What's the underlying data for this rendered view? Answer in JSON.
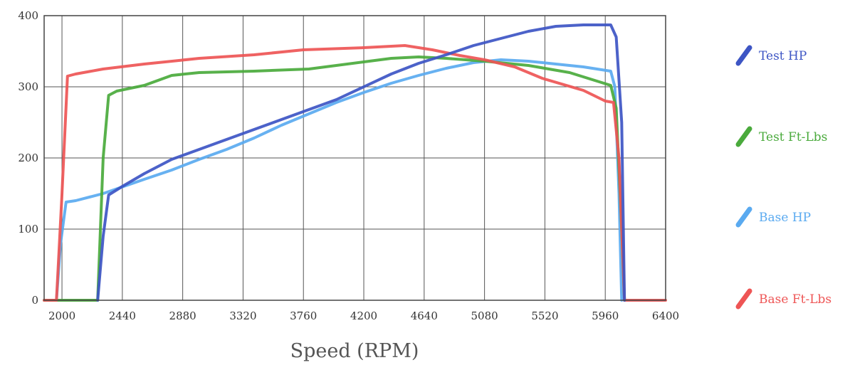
{
  "chart_data": {
    "type": "line",
    "title": "",
    "xlabel": "Speed (RPM)",
    "ylabel": "",
    "xlim": [
      1870,
      6400
    ],
    "ylim": [
      0,
      400
    ],
    "x_ticks": [
      "2000",
      "2440",
      "2880",
      "3320",
      "3760",
      "4200",
      "4640",
      "5080",
      "5520",
      "5960",
      "6400"
    ],
    "y_ticks": [
      "0",
      "100",
      "200",
      "300",
      "400"
    ],
    "grid": true,
    "legend_position": "right",
    "series": [
      {
        "name": "Test HP",
        "color": "#3d55c4",
        "points": [
          [
            2260,
            0
          ],
          [
            2300,
            90
          ],
          [
            2340,
            148
          ],
          [
            2440,
            160
          ],
          [
            2600,
            178
          ],
          [
            2800,
            198
          ],
          [
            3000,
            212
          ],
          [
            3200,
            226
          ],
          [
            3400,
            240
          ],
          [
            3600,
            254
          ],
          [
            3800,
            268
          ],
          [
            4000,
            282
          ],
          [
            4200,
            300
          ],
          [
            4400,
            318
          ],
          [
            4600,
            333
          ],
          [
            4800,
            345
          ],
          [
            5000,
            358
          ],
          [
            5200,
            368
          ],
          [
            5400,
            378
          ],
          [
            5600,
            385
          ],
          [
            5800,
            387
          ],
          [
            6000,
            387
          ],
          [
            6040,
            370
          ],
          [
            6080,
            250
          ],
          [
            6100,
            0
          ]
        ]
      },
      {
        "name": "Test Ft-Lbs",
        "color": "#4aaa3c",
        "points": [
          [
            1870,
            0
          ],
          [
            2260,
            0
          ],
          [
            2300,
            200
          ],
          [
            2340,
            288
          ],
          [
            2400,
            294
          ],
          [
            2600,
            302
          ],
          [
            2800,
            316
          ],
          [
            3000,
            320
          ],
          [
            3400,
            322
          ],
          [
            3800,
            325
          ],
          [
            4200,
            335
          ],
          [
            4400,
            340
          ],
          [
            4600,
            342
          ],
          [
            4800,
            340
          ],
          [
            5080,
            336
          ],
          [
            5400,
            330
          ],
          [
            5700,
            320
          ],
          [
            6000,
            302
          ],
          [
            6040,
            270
          ],
          [
            6080,
            100
          ],
          [
            6100,
            0
          ]
        ]
      },
      {
        "name": "Base HP",
        "color": "#5aaaf0",
        "points": [
          [
            1960,
            0
          ],
          [
            1990,
            80
          ],
          [
            2030,
            138
          ],
          [
            2100,
            140
          ],
          [
            2300,
            150
          ],
          [
            2600,
            170
          ],
          [
            2800,
            183
          ],
          [
            3000,
            198
          ],
          [
            3200,
            212
          ],
          [
            3400,
            228
          ],
          [
            3600,
            246
          ],
          [
            3800,
            262
          ],
          [
            4000,
            278
          ],
          [
            4200,
            292
          ],
          [
            4400,
            305
          ],
          [
            4600,
            316
          ],
          [
            4800,
            326
          ],
          [
            5000,
            334
          ],
          [
            5200,
            338
          ],
          [
            5400,
            336
          ],
          [
            5600,
            332
          ],
          [
            5800,
            328
          ],
          [
            6000,
            322
          ],
          [
            6030,
            300
          ],
          [
            6060,
            150
          ],
          [
            6080,
            0
          ]
        ]
      },
      {
        "name": "Base Ft-Lbs",
        "color": "#ee5555",
        "points": [
          [
            1870,
            0
          ],
          [
            1960,
            0
          ],
          [
            2000,
            150
          ],
          [
            2040,
            315
          ],
          [
            2100,
            318
          ],
          [
            2300,
            325
          ],
          [
            2600,
            332
          ],
          [
            3000,
            340
          ],
          [
            3400,
            345
          ],
          [
            3760,
            352
          ],
          [
            4200,
            355
          ],
          [
            4500,
            358
          ],
          [
            4700,
            352
          ],
          [
            4900,
            344
          ],
          [
            5080,
            338
          ],
          [
            5300,
            328
          ],
          [
            5500,
            312
          ],
          [
            5800,
            295
          ],
          [
            5960,
            280
          ],
          [
            6020,
            278
          ],
          [
            6060,
            200
          ],
          [
            6100,
            0
          ],
          [
            6400,
            0
          ]
        ]
      }
    ]
  }
}
